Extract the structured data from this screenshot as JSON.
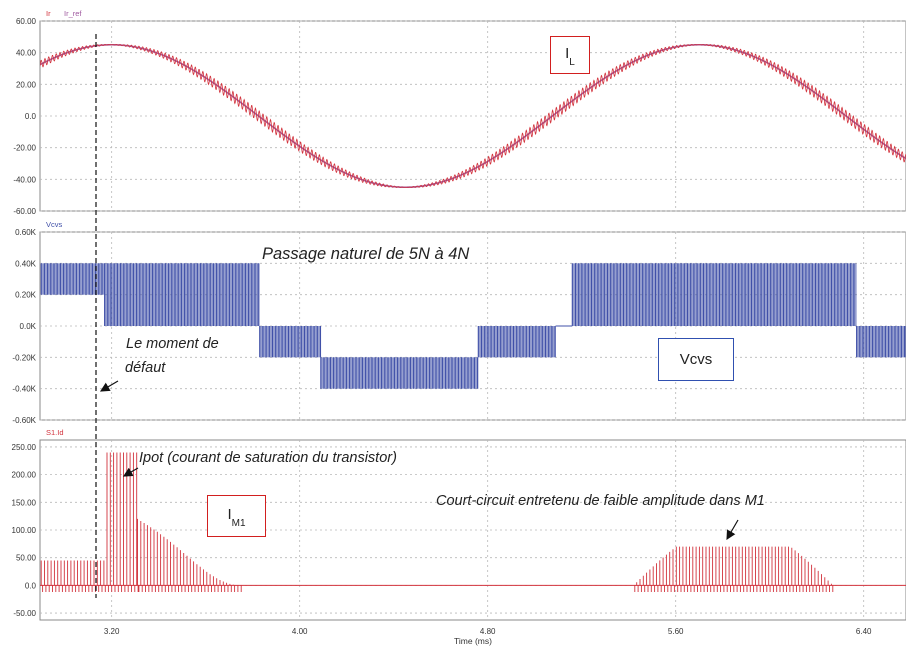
{
  "chart_data": [
    {
      "type": "line",
      "panel": "top",
      "legend": [
        "Ir",
        "Ir_ref"
      ],
      "legend_colors": [
        "#d2323c",
        "#a05aa0"
      ],
      "ylim": [
        -60,
        60
      ],
      "yticks": [
        "60.00",
        "40.00",
        "20.00",
        "0.0",
        "-20.00",
        "-40.00",
        "-60.00"
      ],
      "series": [
        {
          "name": "Ir",
          "color": "#d2323c",
          "amplitude": 45,
          "period_ms": 2.5,
          "peak_at_ms": 3.2,
          "ripple": 3.5
        },
        {
          "name": "Ir_ref",
          "color": "#a05aa0",
          "amplitude": 45,
          "period_ms": 2.5,
          "peak_at_ms": 3.2
        }
      ]
    },
    {
      "type": "line",
      "panel": "middle",
      "legend": [
        "Vcvs"
      ],
      "legend_colors": [
        "#4050a8"
      ],
      "ylim": [
        -0.6,
        0.6
      ],
      "yticks": [
        "0.60K",
        "0.40K",
        "0.20K",
        "0.0K",
        "-0.20K",
        "-0.40K",
        "-0.60K"
      ],
      "levels_k": [
        {
          "from_ms": 2.9,
          "to_ms": 3.17,
          "low": 0.2,
          "high": 0.4
        },
        {
          "from_ms": 3.17,
          "to_ms": 3.83,
          "low": 0.0,
          "high": 0.4
        },
        {
          "from_ms": 3.83,
          "to_ms": 4.09,
          "low": -0.2,
          "high": 0.0
        },
        {
          "from_ms": 4.09,
          "to_ms": 4.76,
          "low": -0.4,
          "high": -0.2
        },
        {
          "from_ms": 4.76,
          "to_ms": 5.09,
          "low": -0.2,
          "high": 0.0
        },
        {
          "from_ms": 5.09,
          "to_ms": 5.16,
          "low": 0.0,
          "high": 0.0
        },
        {
          "from_ms": 5.16,
          "to_ms": 6.37,
          "low": 0.0,
          "high": 0.4
        },
        {
          "from_ms": 6.37,
          "to_ms": 6.58,
          "low": -0.2,
          "high": 0.0
        }
      ]
    },
    {
      "type": "line",
      "panel": "bottom",
      "legend": [
        "S1.Id"
      ],
      "legend_colors": [
        "#d2323c"
      ],
      "ylim": [
        -62.5,
        262.5
      ],
      "yticks": [
        "250.00",
        "200.00",
        "150.00",
        "100.00",
        "50.00",
        "0.0",
        "-50.00"
      ],
      "xticks": [
        3.2,
        4.0,
        4.8,
        5.6,
        6.4
      ],
      "xtick_labels": [
        "3.20",
        "4.00",
        "4.80",
        "5.60",
        "6.40"
      ],
      "xlim": [
        2.895,
        6.58
      ],
      "xlabel": "Time (ms)",
      "envelope": [
        {
          "from_ms": 2.9,
          "to_ms": 3.18,
          "peak": 45
        },
        {
          "from_ms": 3.18,
          "to_ms": 3.31,
          "peak": 240
        },
        {
          "from_ms": 3.31,
          "to_ms": 3.75,
          "peak": "decay to 0"
        },
        {
          "from_ms": 5.42,
          "to_ms": 6.27,
          "peak": 70
        }
      ]
    }
  ],
  "labels": {
    "il_box": "I",
    "il_sub": "L",
    "vcvs_box": "Vcvs",
    "im1_box": "I",
    "im1_sub": "M1",
    "passage": "Passage naturel de 5N à 4N",
    "moment_line1": "Le moment de",
    "moment_line2": "défaut",
    "ipot": "Ipot (courant de saturation du transistor)",
    "court_circuit": "Court-circuit entretenu  de faible amplitude dans M1"
  }
}
